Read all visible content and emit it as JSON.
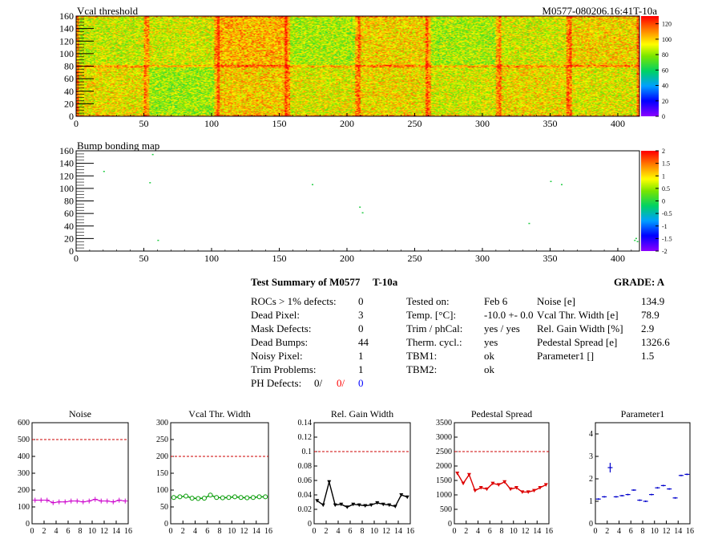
{
  "top_map": {
    "title": "Vcal threshold",
    "module_label": "M0577-080206.16:41T-10a",
    "y_ticks": [
      "0",
      "20",
      "40",
      "60",
      "80",
      "100",
      "120",
      "140",
      "160"
    ],
    "x_ticks": [
      "0",
      "50",
      "100",
      "150",
      "200",
      "250",
      "300",
      "350",
      "400"
    ],
    "color_scale": [
      "0",
      "20",
      "40",
      "60",
      "80",
      "100",
      "120"
    ]
  },
  "bump_map": {
    "title": "Bump bonding map",
    "y_ticks": [
      "0",
      "20",
      "40",
      "60",
      "80",
      "100",
      "120",
      "140",
      "160"
    ],
    "x_ticks": [
      "0",
      "50",
      "100",
      "150",
      "200",
      "250",
      "300",
      "350",
      "400"
    ],
    "color_scale": [
      "-2",
      "-1.5",
      "-1",
      "-0.5",
      "0",
      "0.5",
      "1",
      "1.5",
      "2"
    ]
  },
  "summary": {
    "title": "Test Summary of M0577",
    "temp_tag": "T-10a",
    "grade": "GRADE:  A",
    "col1": [
      {
        "label": "ROCs > 1% defects:",
        "value": "0"
      },
      {
        "label": "Dead Pixel:",
        "value": "3"
      },
      {
        "label": "Mask Defects:",
        "value": "0"
      },
      {
        "label": "Dead Bumps:",
        "value": "44"
      },
      {
        "label": "Noisy Pixel:",
        "value": "1"
      },
      {
        "label": "Trim Problems:",
        "value": "1"
      }
    ],
    "ph_label": "PH Defects:",
    "ph_values": [
      "0/",
      "0/",
      "0"
    ],
    "col2": [
      {
        "label": "Tested on:",
        "value": "Feb 6"
      },
      {
        "label": "Temp. [°C]:",
        "value": "-10.0 +- 0.0"
      },
      {
        "label": "Trim / phCal:",
        "value": "yes / yes"
      },
      {
        "label": "Therm. cycl.:",
        "value": "yes"
      },
      {
        "label": "TBM1:",
        "value": "ok"
      },
      {
        "label": "TBM2:",
        "value": "ok"
      }
    ],
    "col3": [
      {
        "label": "Noise [e]",
        "value": "134.9"
      },
      {
        "label": "Vcal Thr. Width [e]",
        "value": "78.9"
      },
      {
        "label": "Rel. Gain Width [%]",
        "value": "2.9"
      },
      {
        "label": "Pedestal Spread [e]",
        "value": "1326.6"
      },
      {
        "label": "Parameter1 []",
        "value": "1.5"
      }
    ]
  },
  "chart_data": [
    {
      "type": "heatmap",
      "title": "Vcal threshold",
      "xlim": [
        0,
        416
      ],
      "ylim": [
        0,
        160
      ],
      "zlim": [
        0,
        130
      ],
      "x_ticks": [
        0,
        50,
        100,
        150,
        200,
        250,
        300,
        350,
        400
      ],
      "y_ticks": [
        0,
        20,
        40,
        60,
        80,
        100,
        120,
        140,
        160
      ]
    },
    {
      "type": "heatmap",
      "title": "Bump bonding map",
      "xlim": [
        0,
        416
      ],
      "ylim": [
        0,
        160
      ],
      "zlim": [
        -2,
        2
      ],
      "x_ticks": [
        0,
        50,
        100,
        150,
        200,
        250,
        300,
        350,
        400
      ],
      "y_ticks": [
        0,
        20,
        40,
        60,
        80,
        100,
        120,
        140,
        160
      ]
    },
    {
      "type": "line",
      "title": "Noise",
      "x": [
        0,
        1,
        2,
        3,
        4,
        5,
        6,
        7,
        8,
        9,
        10,
        11,
        12,
        13,
        14,
        15
      ],
      "values": [
        140,
        140,
        140,
        125,
        130,
        130,
        135,
        135,
        130,
        135,
        145,
        135,
        135,
        130,
        140,
        135
      ],
      "ylim": [
        0,
        600
      ],
      "xlim": [
        0,
        16
      ],
      "threshold": 500,
      "y_ticks": [
        0,
        100,
        200,
        300,
        400,
        500,
        600
      ],
      "x_ticks": [
        0,
        2,
        4,
        6,
        8,
        10,
        12,
        14,
        16
      ],
      "color": "#cc00cc",
      "marker": "plus"
    },
    {
      "type": "line",
      "title": "Vcal Thr. Width",
      "x": [
        0,
        1,
        2,
        3,
        4,
        5,
        6,
        7,
        8,
        9,
        10,
        11,
        12,
        13,
        14,
        15
      ],
      "values": [
        78,
        80,
        82,
        76,
        75,
        76,
        85,
        78,
        77,
        78,
        80,
        78,
        77,
        78,
        80,
        80
      ],
      "ylim": [
        0,
        300
      ],
      "xlim": [
        0,
        16
      ],
      "threshold": 200,
      "y_ticks": [
        0,
        50,
        100,
        150,
        200,
        250,
        300
      ],
      "x_ticks": [
        0,
        2,
        4,
        6,
        8,
        10,
        12,
        14,
        16
      ],
      "color": "#009900",
      "marker": "circle"
    },
    {
      "type": "line",
      "title": "Rel. Gain Width",
      "x": [
        0,
        1,
        2,
        3,
        4,
        5,
        6,
        7,
        8,
        9,
        10,
        11,
        12,
        13,
        14,
        15
      ],
      "values": [
        0.032,
        0.026,
        0.058,
        0.026,
        0.027,
        0.023,
        0.027,
        0.026,
        0.025,
        0.026,
        0.029,
        0.027,
        0.026,
        0.024,
        0.04,
        0.037
      ],
      "ylim": [
        0,
        0.14
      ],
      "xlim": [
        0,
        16
      ],
      "threshold": 0.1,
      "y_ticks": [
        "0",
        "0.02",
        "0.04",
        "0.06",
        "0.08",
        "0.1",
        "0.12",
        "0.14"
      ],
      "x_ticks": [
        0,
        2,
        4,
        6,
        8,
        10,
        12,
        14,
        16
      ],
      "color": "#000000",
      "marker": "triangle"
    },
    {
      "type": "line",
      "title": "Pedestal Spread",
      "x": [
        0,
        1,
        2,
        3,
        4,
        5,
        6,
        7,
        8,
        9,
        10,
        11,
        12,
        13,
        14,
        15
      ],
      "values": [
        1750,
        1400,
        1700,
        1150,
        1250,
        1200,
        1400,
        1350,
        1450,
        1200,
        1250,
        1100,
        1100,
        1150,
        1250,
        1350
      ],
      "ylim": [
        0,
        3500
      ],
      "xlim": [
        0,
        16
      ],
      "threshold": 2500,
      "y_ticks": [
        0,
        500,
        1000,
        1500,
        2000,
        2500,
        3000,
        3500
      ],
      "x_ticks": [
        0,
        2,
        4,
        6,
        8,
        10,
        12,
        14,
        16
      ],
      "color": "#dd0000",
      "marker": "triangle"
    },
    {
      "type": "scatter",
      "title": "Parameter1",
      "x": [
        0,
        1,
        2,
        3,
        4,
        5,
        6,
        7,
        8,
        9,
        10,
        11,
        12,
        13,
        14,
        15
      ],
      "values": [
        1.1,
        1.2,
        2.5,
        1.2,
        1.25,
        1.3,
        1.5,
        1.05,
        1.0,
        1.3,
        1.6,
        1.7,
        1.55,
        1.15,
        2.15,
        2.2
      ],
      "ylim": [
        0,
        4.5
      ],
      "xlim": [
        0,
        16
      ],
      "y_ticks": [
        0,
        1,
        2,
        3,
        4
      ],
      "x_ticks": [
        0,
        2,
        4,
        6,
        8,
        10,
        12,
        14,
        16
      ],
      "color": "#0000cc",
      "marker": "errorbar"
    }
  ]
}
